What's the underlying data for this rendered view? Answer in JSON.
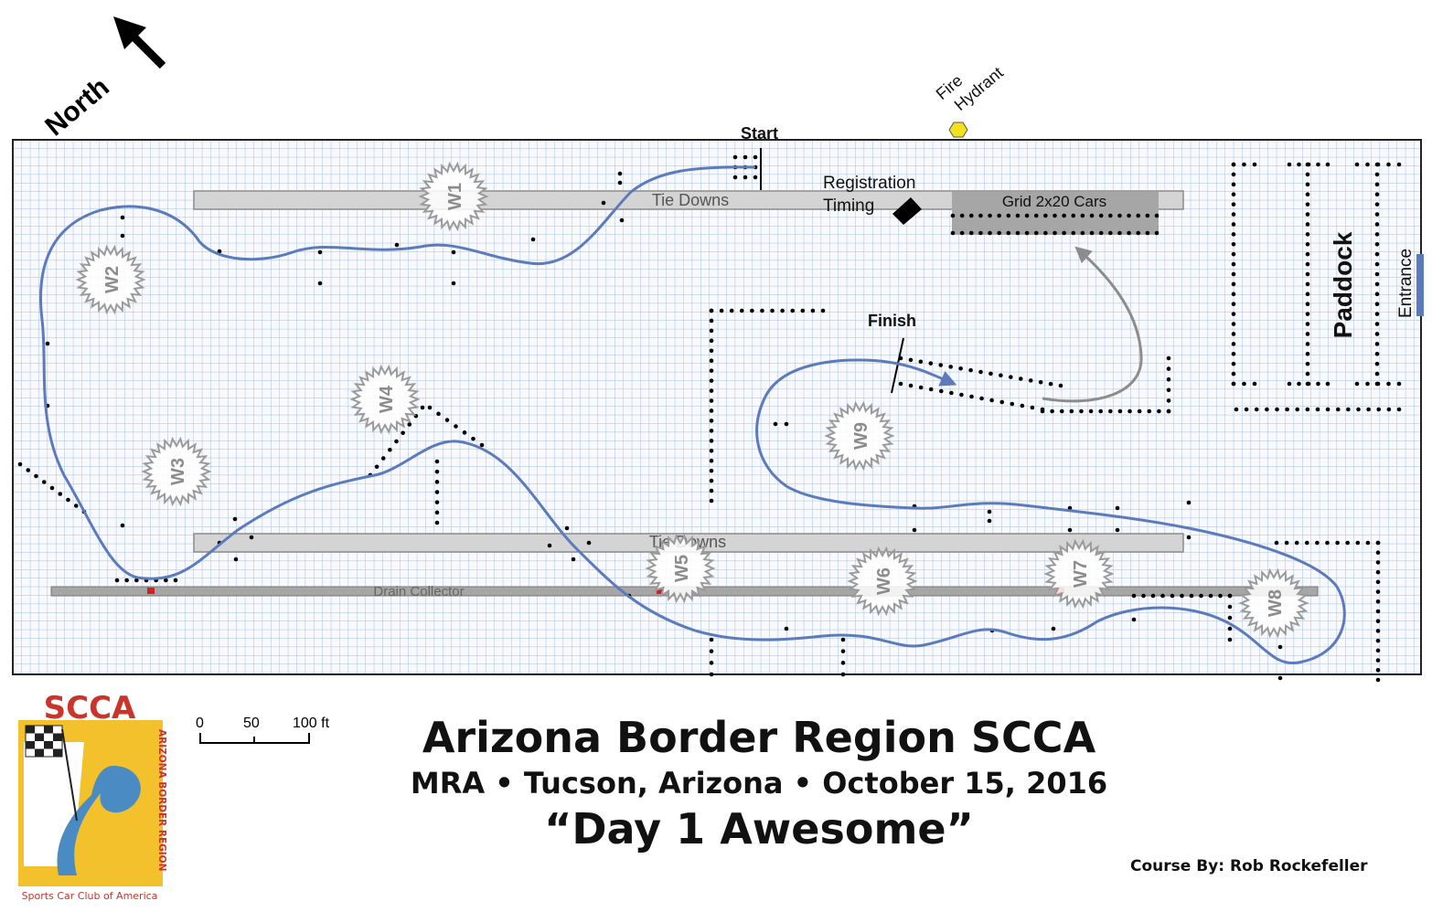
{
  "header": {
    "north_label": "North",
    "start_label": "Start",
    "finish_label": "Finish",
    "fire_hydrant_line1": "Fire",
    "fire_hydrant_line2": "Hydrant",
    "registration_label": "Registration",
    "timing_label": "Timing",
    "grid_label": "Grid 2x20 Cars",
    "paddock_label": "Paddock",
    "entrance_label": "Entrance",
    "tie_downs_top": "Tie Downs",
    "tie_downs_bottom": "Tie Downs",
    "drain_collector": "Drain Collector"
  },
  "workers": {
    "w1": "W1",
    "w2": "W2",
    "w3": "W3",
    "w4": "W4",
    "w5": "W5",
    "w6": "W6",
    "w7": "W7",
    "w8": "W8",
    "w9": "W9"
  },
  "scale": {
    "tick0": "0",
    "tick50": "50",
    "tick100": "100 ft"
  },
  "footer": {
    "title": "Arizona Border Region SCCA",
    "subtitle": "MRA • Tucson, Arizona • October 15, 2016",
    "event_name": "“Day 1 Awesome”",
    "credit": "Course By:  Rob Rockefeller"
  },
  "logo": {
    "scca": "SCCA",
    "region_text": "ARIZONA BORDER REGION",
    "club_text": "Sports Car Club of America"
  },
  "colors": {
    "grid_line": "#a9bfdb",
    "course_line": "#5b7bbd",
    "tie_down_fill": "#d4d4d4",
    "grid_area_fill": "#a6a6a6",
    "hydrant": "#f2e21e",
    "logo_red": "#c9352b",
    "logo_yellow": "#f3c12c",
    "logo_blue": "#4a8bc4"
  }
}
